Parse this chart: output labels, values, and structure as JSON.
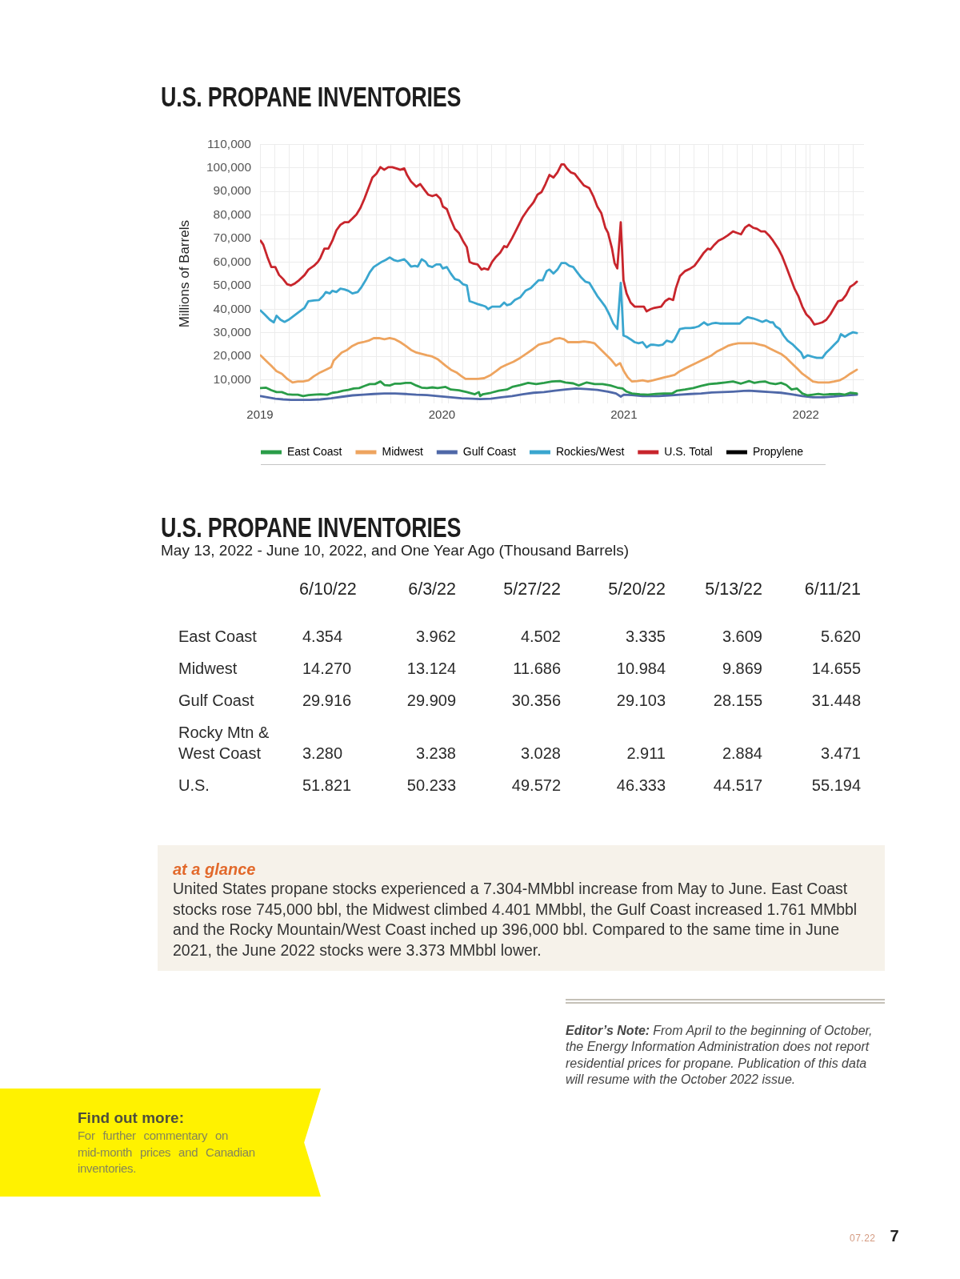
{
  "chart_data": [
    {
      "type": "line",
      "title": "U.S. PROPANE INVENTORIES",
      "ylabel": "Millions of Barrels",
      "xlim": [
        2019,
        2022.32
      ],
      "xticks": [
        2019,
        {
          "value": 2019.082,
          "label": null
        },
        {
          "value": 2019.162,
          "label": null
        },
        {
          "value": 2019.241,
          "label": null
        },
        {
          "value": 2019.321,
          "label": null
        },
        {
          "value": 2019.4,
          "label": null
        },
        {
          "value": 2019.48,
          "label": null
        },
        {
          "value": 2019.559,
          "label": null
        },
        {
          "value": 2019.639,
          "label": null
        },
        {
          "value": 2019.718,
          "label": null
        },
        {
          "value": 2019.798,
          "label": null
        },
        {
          "value": 2019.877,
          "label": null
        },
        {
          "value": 2019.957,
          "label": null
        },
        2020,
        {
          "value": 2020.036,
          "label": null
        },
        {
          "value": 2020.115,
          "label": null
        },
        {
          "value": 2020.195,
          "label": null
        },
        {
          "value": 2020.274,
          "label": null
        },
        {
          "value": 2020.354,
          "label": null
        },
        {
          "value": 2020.433,
          "label": null
        },
        {
          "value": 2020.513,
          "label": null
        },
        {
          "value": 2020.592,
          "label": null
        },
        {
          "value": 2020.672,
          "label": null
        },
        {
          "value": 2020.751,
          "label": null
        },
        {
          "value": 2020.831,
          "label": null
        },
        {
          "value": 2020.91,
          "label": null
        },
        {
          "value": 2020.99,
          "label": null
        },
        2021,
        {
          "value": 2021.069,
          "label": null
        },
        {
          "value": 2021.148,
          "label": null
        },
        {
          "value": 2021.228,
          "label": null
        },
        {
          "value": 2021.307,
          "label": null
        },
        {
          "value": 2021.387,
          "label": null
        },
        {
          "value": 2021.466,
          "label": null
        },
        {
          "value": 2021.546,
          "label": null
        },
        {
          "value": 2021.625,
          "label": null
        },
        {
          "value": 2021.705,
          "label": null
        },
        {
          "value": 2021.784,
          "label": null
        },
        {
          "value": 2021.864,
          "label": null
        },
        {
          "value": 2021.943,
          "label": null
        },
        2022,
        {
          "value": 2022.022,
          "label": null
        },
        {
          "value": 2022.102,
          "label": null
        },
        {
          "value": 2022.181,
          "label": null
        },
        {
          "value": 2022.261,
          "label": null
        }
      ],
      "ylim": [
        0,
        110000
      ],
      "yticks": [
        {
          "value": 10000,
          "label": "10,000"
        },
        {
          "value": 20000,
          "label": "20,000"
        },
        {
          "value": 30000,
          "label": "30,000"
        },
        {
          "value": 40000,
          "label": "40,000"
        },
        {
          "value": 50000,
          "label": "50,000"
        },
        {
          "value": 60000,
          "label": "60,000"
        },
        {
          "value": 70000,
          "label": "70,000"
        },
        {
          "value": 80000,
          "label": "80,000"
        },
        {
          "value": 90000,
          "label": "90,000"
        },
        {
          "value": 100000,
          "label": "100,000"
        },
        {
          "value": 110000,
          "label": "110,000"
        }
      ],
      "grid": true,
      "legend": "bottom",
      "series": [
        {
          "name": "East Coast",
          "color": "#2a9d48",
          "x": [
            2019.003,
            2019.032,
            2019.062,
            2019.091,
            2019.12,
            2019.15,
            2019.179,
            2019.208,
            2019.237,
            2019.267,
            2019.296,
            2019.332,
            2019.369,
            2019.398,
            2019.427,
            2019.457,
            2019.486,
            2019.515,
            2019.545,
            2019.574,
            2019.603,
            2019.632,
            2019.662,
            2019.684,
            2019.713,
            2019.742,
            2019.771,
            2019.801,
            2019.83,
            2019.859,
            2019.888,
            2019.918,
            2019.947,
            2019.976,
            2020.02,
            2020.049,
            2020.093,
            2020.137,
            2020.181,
            2020.203,
            2020.21,
            2020.225,
            2020.269,
            2020.313,
            2020.357,
            2020.386,
            2020.43,
            2020.474,
            2020.518,
            2020.562,
            2020.605,
            2020.649,
            2020.679,
            2020.722,
            2020.752,
            2020.796,
            2020.84,
            2020.883,
            2020.927,
            2020.964,
            2020.993,
            2021.015,
            2021.044,
            2021.088,
            2021.132,
            2021.176,
            2021.22,
            2021.264,
            2021.293,
            2021.337,
            2021.381,
            2021.425,
            2021.469,
            2021.513,
            2021.557,
            2021.6,
            2021.644,
            2021.688,
            2021.717,
            2021.747,
            2021.776,
            2021.805,
            2021.834,
            2021.864,
            2021.893,
            2021.922,
            2021.952,
            2021.981,
            2022.01,
            2022.039,
            2022.069,
            2022.098,
            2022.127,
            2022.156,
            2022.186,
            2022.215,
            2022.244,
            2022.281
          ],
          "values": [
            6500,
            6700,
            5600,
            4800,
            4800,
            3900,
            3700,
            3700,
            3100,
            3500,
            3700,
            3900,
            3700,
            4500,
            4800,
            5400,
            5700,
            6300,
            6500,
            7400,
            8200,
            8200,
            9300,
            7800,
            7600,
            8400,
            8400,
            8700,
            8700,
            7600,
            6700,
            6500,
            6800,
            6500,
            7000,
            5900,
            5600,
            4800,
            3900,
            4800,
            3100,
            3900,
            4500,
            5400,
            5900,
            7000,
            7800,
            8700,
            8200,
            8700,
            9300,
            9500,
            8900,
            8500,
            7600,
            8900,
            8200,
            8200,
            7600,
            6700,
            6300,
            5000,
            4200,
            3900,
            3700,
            4000,
            4200,
            4200,
            5400,
            5900,
            6500,
            7400,
            8200,
            8500,
            8900,
            9300,
            8400,
            9500,
            8700,
            9100,
            9300,
            8500,
            8200,
            8700,
            7800,
            5900,
            6300,
            4200,
            3400,
            3700,
            4000,
            3700,
            3900,
            3900,
            4000,
            3700,
            4500,
            4200
          ]
        },
        {
          "name": "Midwest",
          "color": "#eea45f",
          "x": [
            2019.003,
            2019.032,
            2019.062,
            2019.091,
            2019.12,
            2019.15,
            2019.179,
            2019.208,
            2019.237,
            2019.267,
            2019.296,
            2019.332,
            2019.362,
            2019.391,
            2019.405,
            2019.427,
            2019.449,
            2019.479,
            2019.508,
            2019.537,
            2019.567,
            2019.596,
            2019.625,
            2019.654,
            2019.684,
            2019.713,
            2019.742,
            2019.771,
            2019.801,
            2019.83,
            2019.859,
            2019.888,
            2019.918,
            2019.947,
            2019.976,
            2020.02,
            2020.049,
            2020.079,
            2020.108,
            2020.13,
            2020.166,
            2020.196,
            2020.232,
            2020.269,
            2020.298,
            2020.327,
            2020.357,
            2020.393,
            2020.43,
            2020.466,
            2020.503,
            2020.532,
            2020.561,
            2020.591,
            2020.62,
            2020.649,
            2020.671,
            2020.693,
            2020.722,
            2020.752,
            2020.781,
            2020.81,
            2020.839,
            2020.869,
            2020.898,
            2020.927,
            2020.957,
            2020.979,
            2021.0,
            2021.022,
            2021.044,
            2021.074,
            2021.103,
            2021.132,
            2021.161,
            2021.191,
            2021.22,
            2021.249,
            2021.279,
            2021.308,
            2021.337,
            2021.366,
            2021.396,
            2021.425,
            2021.454,
            2021.483,
            2021.513,
            2021.542,
            2021.571,
            2021.6,
            2021.63,
            2021.659,
            2021.688,
            2021.717,
            2021.747,
            2021.776,
            2021.805,
            2021.834,
            2021.864,
            2021.893,
            2021.922,
            2021.952,
            2021.981,
            2022.01,
            2022.039,
            2022.069,
            2022.098,
            2022.127,
            2022.156,
            2022.186,
            2022.215,
            2022.244,
            2022.281
          ],
          "values": [
            20400,
            18200,
            16000,
            13700,
            12600,
            10400,
            8900,
            9300,
            9300,
            9800,
            11500,
            13200,
            14300,
            15400,
            18200,
            19900,
            21600,
            22700,
            24400,
            25500,
            26000,
            26600,
            27700,
            27700,
            27200,
            27700,
            27200,
            26000,
            24400,
            22700,
            21600,
            21000,
            20400,
            19900,
            18800,
            16000,
            14300,
            13200,
            11500,
            10400,
            10400,
            10400,
            10700,
            12100,
            13700,
            15400,
            16500,
            17700,
            19300,
            21200,
            23200,
            24900,
            25500,
            26000,
            27400,
            27700,
            27200,
            26000,
            26000,
            26000,
            26300,
            26000,
            25500,
            23200,
            21000,
            18800,
            16000,
            17100,
            13700,
            11000,
            9300,
            9500,
            9800,
            9300,
            9800,
            10400,
            11000,
            11500,
            12100,
            13700,
            14900,
            16000,
            17100,
            18200,
            19300,
            20400,
            22100,
            23200,
            24400,
            25100,
            25500,
            25500,
            25500,
            25500,
            24900,
            24400,
            23200,
            22100,
            21000,
            19300,
            17100,
            14900,
            12600,
            11000,
            9300,
            8900,
            8900,
            8900,
            9300,
            9800,
            11000,
            12600,
            14300
          ]
        },
        {
          "name": "Gulf Coast",
          "color": "#4f68a8",
          "x": [
            2019.003,
            2019.04,
            2019.084,
            2019.127,
            2019.171,
            2019.215,
            2019.274,
            2019.332,
            2019.391,
            2019.449,
            2019.508,
            2019.567,
            2019.625,
            2019.684,
            2019.742,
            2019.801,
            2019.859,
            2019.918,
            2019.976,
            2020.049,
            2020.108,
            2020.166,
            2020.21,
            2020.269,
            2020.327,
            2020.386,
            2020.444,
            2020.503,
            2020.561,
            2020.62,
            2020.679,
            2020.737,
            2020.796,
            2020.854,
            2020.913,
            2020.957,
            2020.983,
            2021.0,
            2021.044,
            2021.103,
            2021.191,
            2021.249,
            2021.308,
            2021.366,
            2021.425,
            2021.483,
            2021.542,
            2021.6,
            2021.659,
            2021.688,
            2021.747,
            2021.805,
            2021.864,
            2021.922,
            2021.981,
            2022.039,
            2022.098,
            2022.156,
            2022.215,
            2022.281
          ],
          "values": [
            3100,
            2600,
            2000,
            1700,
            1500,
            1500,
            1500,
            1700,
            2200,
            2800,
            3400,
            3700,
            4000,
            4200,
            4200,
            4000,
            3700,
            3500,
            3100,
            2600,
            2200,
            2000,
            1800,
            2000,
            2600,
            3100,
            3900,
            4500,
            4800,
            5400,
            5900,
            6300,
            6100,
            5700,
            5000,
            4200,
            2900,
            3700,
            3500,
            3100,
            3100,
            3400,
            3700,
            4000,
            4200,
            4600,
            4800,
            5000,
            5300,
            5400,
            5100,
            4800,
            4500,
            3900,
            3100,
            2600,
            2600,
            2900,
            3400,
            3700
          ]
        },
        {
          "name": "Rockies/West",
          "color": "#3aa6cf",
          "x": [
            2019.003,
            2019.025,
            2019.054,
            2019.076,
            2019.091,
            2019.113,
            2019.135,
            2019.157,
            2019.186,
            2019.215,
            2019.245,
            2019.266,
            2019.296,
            2019.325,
            2019.347,
            2019.362,
            2019.384,
            2019.398,
            2019.42,
            2019.442,
            2019.464,
            2019.486,
            2019.508,
            2019.537,
            2019.559,
            2019.581,
            2019.603,
            2019.625,
            2019.647,
            2019.669,
            2019.691,
            2019.713,
            2019.735,
            2019.757,
            2019.779,
            2019.793,
            2019.808,
            2019.83,
            2019.852,
            2019.867,
            2019.889,
            2019.911,
            2019.925,
            2019.947,
            2019.969,
            2019.991,
            2020.005,
            2020.027,
            2020.049,
            2020.071,
            2020.093,
            2020.115,
            2020.137,
            2020.152,
            2020.174,
            2020.196,
            2020.218,
            2020.24,
            2020.254,
            2020.276,
            2020.298,
            2020.32,
            2020.342,
            2020.357,
            2020.379,
            2020.401,
            2020.43,
            2020.459,
            2020.488,
            2020.51,
            2020.532,
            2020.554,
            2020.576,
            2020.591,
            2020.613,
            2020.635,
            2020.657,
            2020.679,
            2020.7,
            2020.722,
            2020.744,
            2020.766,
            2020.788,
            2020.81,
            2020.832,
            2020.854,
            2020.876,
            2020.898,
            2020.92,
            2020.942,
            2020.964,
            2020.983,
            2020.998,
            2021.015,
            2021.037,
            2021.059,
            2021.081,
            2021.103,
            2021.125,
            2021.147,
            2021.161,
            2021.191,
            2021.213,
            2021.235,
            2021.264,
            2021.279,
            2021.308,
            2021.337,
            2021.366,
            2021.388,
            2021.41,
            2021.44,
            2021.461,
            2021.483,
            2021.505,
            2021.527,
            2021.557,
            2021.586,
            2021.615,
            2021.637,
            2021.659,
            2021.681,
            2021.71,
            2021.732,
            2021.761,
            2021.783,
            2021.805,
            2021.82,
            2021.834,
            2021.857,
            2021.878,
            2021.9,
            2021.93,
            2021.952,
            2021.974,
            2021.988,
            2022.01,
            2022.032,
            2022.061,
            2022.091,
            2022.113,
            2022.135,
            2022.156,
            2022.178,
            2022.193,
            2022.215,
            2022.237,
            2022.259,
            2022.281
          ],
          "values": [
            39400,
            37800,
            35500,
            34400,
            37200,
            35500,
            34600,
            35500,
            37200,
            38900,
            40600,
            43400,
            43700,
            43900,
            45600,
            47300,
            46700,
            47800,
            47300,
            48700,
            48400,
            47800,
            46700,
            47300,
            49500,
            52300,
            55600,
            57900,
            59000,
            60100,
            60900,
            62000,
            60900,
            60400,
            60900,
            61200,
            60100,
            58100,
            58400,
            58100,
            61200,
            60100,
            58400,
            57900,
            59000,
            59000,
            57300,
            57900,
            55100,
            52800,
            52300,
            50600,
            50100,
            43400,
            42800,
            42200,
            41700,
            41100,
            40000,
            41100,
            41100,
            41100,
            42800,
            41700,
            42200,
            43900,
            45000,
            47800,
            48900,
            50600,
            52300,
            52300,
            56200,
            56800,
            55100,
            56800,
            59600,
            59600,
            58400,
            57900,
            55600,
            53400,
            51700,
            51200,
            48400,
            45600,
            43400,
            41100,
            37800,
            33900,
            31600,
            51200,
            28800,
            28300,
            27200,
            26000,
            25500,
            26000,
            23800,
            24900,
            24900,
            24600,
            24900,
            26600,
            26000,
            27200,
            31600,
            32000,
            32000,
            32200,
            32700,
            34400,
            33300,
            33900,
            34200,
            33900,
            33900,
            33900,
            33900,
            33900,
            35500,
            36600,
            36100,
            35500,
            34600,
            35300,
            34400,
            34400,
            32700,
            31600,
            28800,
            26600,
            24900,
            23200,
            21600,
            19300,
            20400,
            19900,
            19300,
            19300,
            21600,
            23200,
            24900,
            26600,
            29400,
            28300,
            29400,
            30200,
            29900
          ]
        },
        {
          "name": "U.S. Total",
          "color": "#c8252c",
          "x": [
            2019.003,
            2019.018,
            2019.04,
            2019.062,
            2019.084,
            2019.105,
            2019.127,
            2019.149,
            2019.171,
            2019.193,
            2019.215,
            2019.245,
            2019.266,
            2019.296,
            2019.318,
            2019.332,
            2019.354,
            2019.376,
            2019.398,
            2019.42,
            2019.442,
            2019.464,
            2019.486,
            2019.508,
            2019.53,
            2019.552,
            2019.574,
            2019.596,
            2019.618,
            2019.64,
            2019.662,
            2019.683,
            2019.705,
            2019.727,
            2019.749,
            2019.771,
            2019.793,
            2019.808,
            2019.83,
            2019.859,
            2019.881,
            2019.903,
            2019.925,
            2019.947,
            2019.969,
            2019.991,
            2020.005,
            2020.027,
            2020.049,
            2020.071,
            2020.093,
            2020.115,
            2020.137,
            2020.152,
            2020.174,
            2020.196,
            2020.218,
            2020.232,
            2020.254,
            2020.276,
            2020.298,
            2020.32,
            2020.342,
            2020.357,
            2020.386,
            2020.415,
            2020.444,
            2020.474,
            2020.503,
            2020.525,
            2020.547,
            2020.569,
            2020.591,
            2020.613,
            2020.635,
            2020.657,
            2020.671,
            2020.686,
            2020.708,
            2020.73,
            2020.752,
            2020.781,
            2020.81,
            2020.832,
            2020.854,
            2020.876,
            2020.898,
            2020.913,
            2020.935,
            2020.949,
            2020.964,
            2020.983,
            2020.998,
            2021.015,
            2021.037,
            2021.059,
            2021.088,
            2021.11,
            2021.125,
            2021.147,
            2021.169,
            2021.205,
            2021.227,
            2021.249,
            2021.271,
            2021.286,
            2021.308,
            2021.337,
            2021.366,
            2021.388,
            2021.41,
            2021.44,
            2021.461,
            2021.476,
            2021.498,
            2021.52,
            2021.549,
            2021.571,
            2021.6,
            2021.622,
            2021.644,
            2021.666,
            2021.688,
            2021.71,
            2021.732,
            2021.754,
            2021.776,
            2021.798,
            2021.82,
            2021.849,
            2021.871,
            2021.893,
            2021.915,
            2021.937,
            2021.959,
            2021.981,
            2022.003,
            2022.025,
            2022.047,
            2022.069,
            2022.091,
            2022.113,
            2022.135,
            2022.156,
            2022.178,
            2022.2,
            2022.222,
            2022.244,
            2022.266,
            2022.281
          ],
          "values": [
            69100,
            67400,
            62300,
            57900,
            57900,
            54500,
            52800,
            50600,
            50100,
            51000,
            52300,
            54500,
            56800,
            58400,
            60100,
            61800,
            65700,
            65700,
            69100,
            73500,
            75800,
            76900,
            76900,
            78500,
            80200,
            83000,
            86900,
            91400,
            95900,
            97500,
            100300,
            99200,
            100300,
            100300,
            99800,
            99200,
            99800,
            97000,
            94200,
            92000,
            93100,
            90800,
            88600,
            88000,
            88600,
            86900,
            83600,
            82500,
            78000,
            74100,
            72400,
            69100,
            66300,
            60100,
            59300,
            59000,
            56800,
            57300,
            56800,
            60100,
            62300,
            64000,
            66800,
            66300,
            70200,
            74600,
            79100,
            82500,
            85300,
            88600,
            89700,
            93100,
            97000,
            95900,
            98100,
            101500,
            101500,
            99800,
            98100,
            97500,
            95300,
            92500,
            91400,
            88000,
            83600,
            80800,
            74600,
            72400,
            65700,
            59600,
            57300,
            76900,
            52300,
            46700,
            42800,
            41100,
            41100,
            41100,
            39100,
            40000,
            40600,
            41100,
            43400,
            44500,
            43900,
            48900,
            54000,
            56200,
            57300,
            58400,
            60700,
            64000,
            65700,
            65400,
            67400,
            69100,
            70200,
            71300,
            73000,
            72400,
            71800,
            74600,
            75800,
            74600,
            74100,
            73000,
            73000,
            71300,
            69100,
            65700,
            62300,
            57900,
            53400,
            48900,
            45600,
            41100,
            37800,
            36100,
            33500,
            33900,
            34400,
            35500,
            37800,
            40600,
            43400,
            43900,
            46100,
            49500,
            50600,
            51700
          ]
        },
        {
          "name": "Propylene",
          "color": "#000000"
        }
      ]
    },
    {
      "type": "other",
      "title": "U.S. PROPANE INVENTORIES",
      "subtitle": "May 13, 2022 - June 10, 2022, and One Year Ago (Thousand Barrels)",
      "categories": [
        "6/10/22",
        "6/3/22",
        "5/27/22",
        "5/20/22",
        "5/13/22",
        "6/11/21"
      ],
      "y_categories": [
        "East Coast",
        "Midwest",
        "Gulf Coast",
        "Rocky Mtn & West Coast",
        "U.S."
      ],
      "cell_labels": [
        [
          "4.354",
          "3.962",
          "4.502",
          "3.335",
          "3.609",
          "5.620"
        ],
        [
          "14.270",
          "13.124",
          "11.686",
          "10.984",
          "9.869",
          "14.655"
        ],
        [
          "29.916",
          "29.909",
          "30.356",
          "29.103",
          "28.155",
          "31.448"
        ],
        [
          "3.280",
          "3.238",
          "3.028",
          "2.911",
          "2.884",
          "3.471"
        ],
        [
          "51.821",
          "50.233",
          "49.572",
          "46.333",
          "44.517",
          "55.194"
        ]
      ]
    },
    {
      "type": "other",
      "title": "at a glance",
      "annotations": [
        "United States propane stocks experienced a 7.304-MMbbl increase from May to June. East Coast stocks rose 745,000 bbl, the Midwest climbed 4.401 MMbbl, the Gulf Coast increased 1.761 MMbbl and the Rocky Mountain/West Coast inched up 396,000 bbl. Compared to the same time in June 2021, the June 2022 stocks were 3.373 MMbbl lower."
      ]
    },
    {
      "type": "other",
      "title": "Editor’s Note:",
      "annotations": [
        "From April to the beginning of October, the Energy Information Administration does not report residential prices for propane. Publication of this data will resume with the October 2022 issue."
      ]
    },
    {
      "type": "other",
      "title": "Find out more:",
      "annotations": [
        "For further commentary on mid-month prices and Canadian inventories."
      ]
    },
    {
      "type": "other",
      "annotations": [
        "07.22",
        "7"
      ]
    }
  ]
}
